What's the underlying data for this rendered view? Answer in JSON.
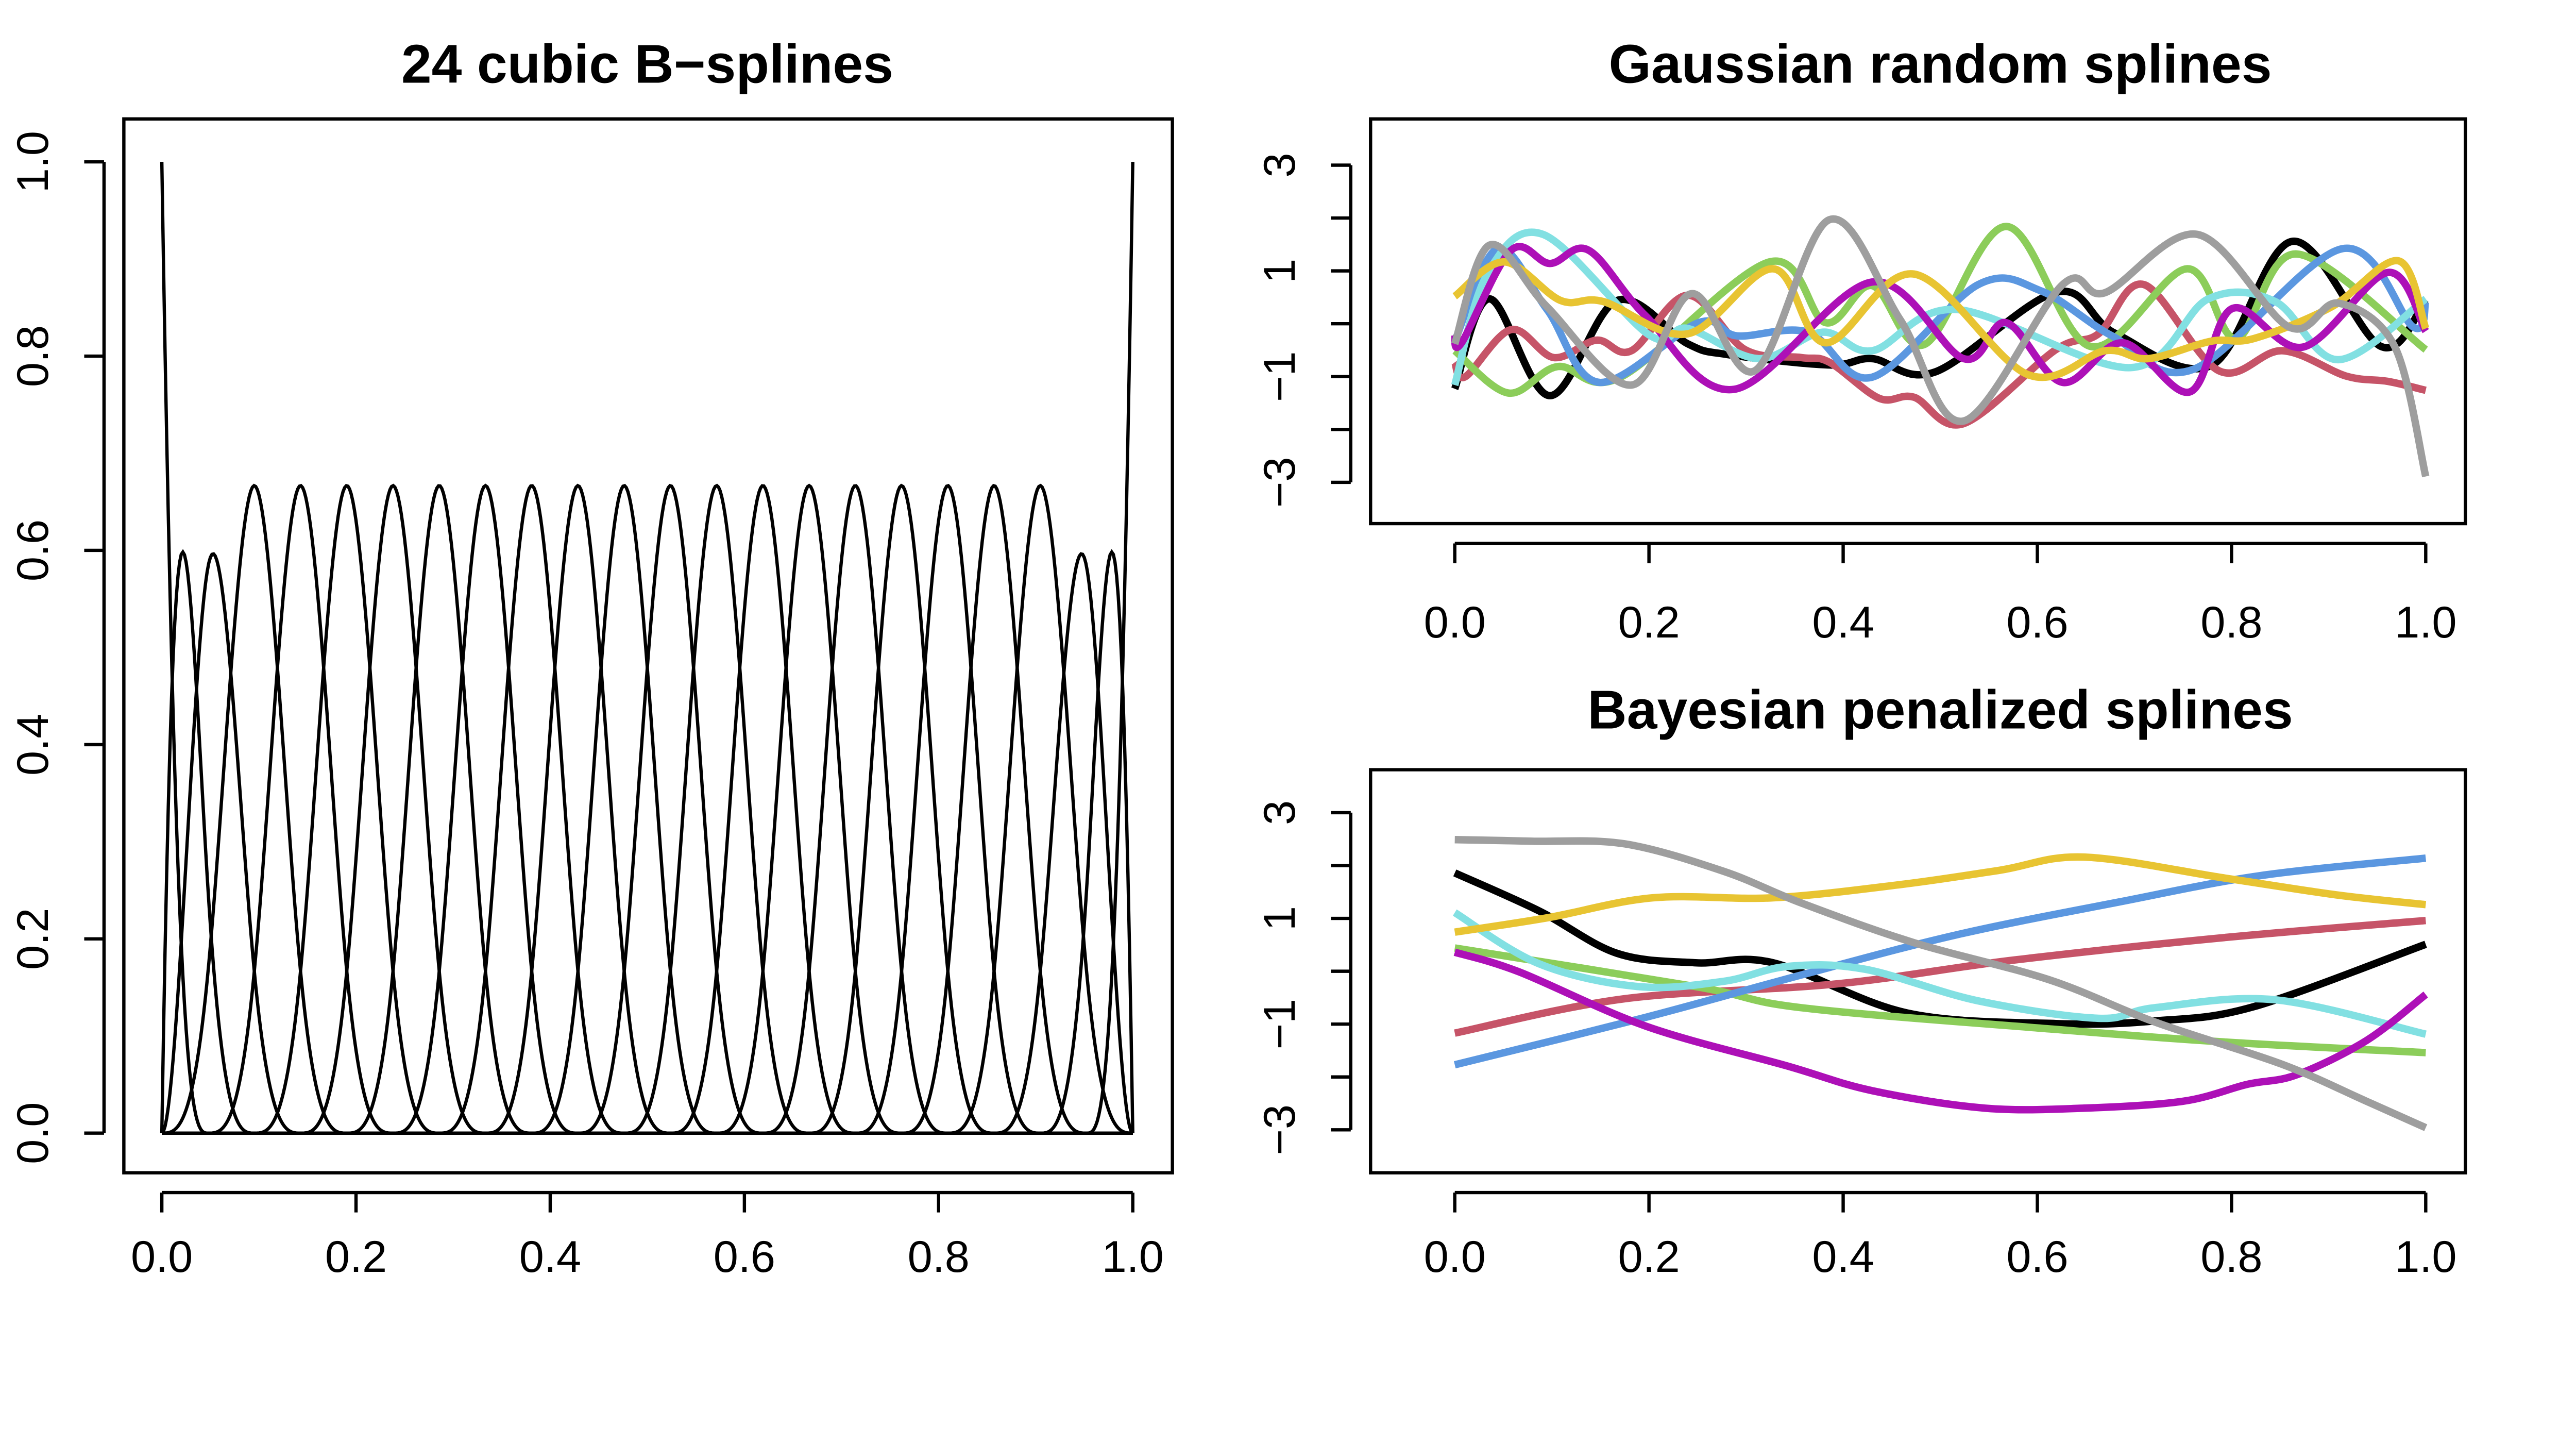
{
  "chart_data": [
    {
      "type": "line",
      "title": "24 cubic B−splines",
      "n_basis": 24,
      "degree": 3,
      "xlim": [
        0,
        1
      ],
      "ylim": [
        0,
        1
      ],
      "x_ticks": [
        "0.0",
        "0.2",
        "0.4",
        "0.6",
        "0.8",
        "1.0"
      ],
      "x_tick_values": [
        0,
        0.2,
        0.4,
        0.6,
        0.8,
        1.0
      ],
      "y_ticks": [
        "0.0",
        "0.2",
        "0.4",
        "0.6",
        "0.8",
        "1.0"
      ],
      "y_tick_values": [
        0,
        0.2,
        0.4,
        0.6,
        0.8,
        1.0
      ],
      "color": "#000000"
    },
    {
      "type": "line",
      "title": "Gaussian random splines",
      "xlim": [
        0,
        1
      ],
      "ylim": [
        -3,
        3
      ],
      "x_ticks": [
        "0.0",
        "0.2",
        "0.4",
        "0.6",
        "0.8",
        "1.0"
      ],
      "x_tick_values": [
        0,
        0.2,
        0.4,
        0.6,
        0.8,
        1.0
      ],
      "y_tick_values": [
        -3,
        -2,
        -1,
        0,
        1,
        2,
        3
      ],
      "y_ticks": [
        "−3",
        "",
        "−1",
        "",
        "1",
        "",
        "3"
      ],
      "series": [
        {
          "name": "black",
          "color": "#000000",
          "points": [
            [
              0,
              -1.23
            ],
            [
              0.036,
              0.47
            ],
            [
              0.098,
              -1.36
            ],
            [
              0.167,
              0.44
            ],
            [
              0.24,
              -0.38
            ],
            [
              0.28,
              -0.58
            ],
            [
              0.386,
              -0.78
            ],
            [
              0.43,
              -0.66
            ],
            [
              0.495,
              -0.91
            ],
            [
              0.62,
              0.6
            ],
            [
              0.68,
              -0.18
            ],
            [
              0.78,
              -0.78
            ],
            [
              0.863,
              1.56
            ],
            [
              0.954,
              -0.43
            ],
            [
              1,
              0.46
            ]
          ]
        },
        {
          "name": "red",
          "color": "#C65468",
          "points": [
            [
              0,
              -0.73
            ],
            [
              0.011,
              -1.0
            ],
            [
              0.058,
              -0.11
            ],
            [
              0.102,
              -0.64
            ],
            [
              0.146,
              -0.31
            ],
            [
              0.182,
              -0.51
            ],
            [
              0.24,
              0.54
            ],
            [
              0.299,
              -0.49
            ],
            [
              0.357,
              -0.64
            ],
            [
              0.386,
              -0.73
            ],
            [
              0.437,
              -1.41
            ],
            [
              0.473,
              -1.39
            ],
            [
              0.524,
              -1.89
            ],
            [
              0.619,
              -0.49
            ],
            [
              0.663,
              -0.19
            ],
            [
              0.71,
              0.74
            ],
            [
              0.787,
              -0.89
            ],
            [
              0.852,
              -0.51
            ],
            [
              0.918,
              -0.99
            ],
            [
              0.961,
              -1.09
            ],
            [
              1,
              -1.26
            ]
          ]
        },
        {
          "name": "green",
          "color": "#8CCD5A",
          "points": [
            [
              0,
              -0.51
            ],
            [
              0.055,
              -1.31
            ],
            [
              0.106,
              -0.81
            ],
            [
              0.171,
              -1.01
            ],
            [
              0.324,
              1.17
            ],
            [
              0.382,
              0.02
            ],
            [
              0.43,
              0.72
            ],
            [
              0.484,
              -0.39
            ],
            [
              0.568,
              1.84
            ],
            [
              0.655,
              -0.43
            ],
            [
              0.754,
              1.04
            ],
            [
              0.805,
              -0.28
            ],
            [
              0.867,
              1.32
            ],
            [
              1,
              -0.49
            ]
          ]
        },
        {
          "name": "blue",
          "color": "#5B97E0",
          "points": [
            [
              0,
              -0.33
            ],
            [
              0.044,
              1.42
            ],
            [
              0.095,
              0.27
            ],
            [
              0.149,
              -1.11
            ],
            [
              0.251,
              0.02
            ],
            [
              0.291,
              -0.23
            ],
            [
              0.364,
              -0.16
            ],
            [
              0.43,
              -1.01
            ],
            [
              0.539,
              0.74
            ],
            [
              0.604,
              0.62
            ],
            [
              0.677,
              -0.23
            ],
            [
              0.761,
              -0.86
            ],
            [
              0.914,
              1.42
            ],
            [
              0.987,
              -0.06
            ],
            [
              1,
              0.42
            ]
          ]
        },
        {
          "name": "cyan",
          "color": "#82E0E2",
          "points": [
            [
              0,
              -1.16
            ],
            [
              0.033,
              0.92
            ],
            [
              0.091,
              1.69
            ],
            [
              0.2,
              -0.21
            ],
            [
              0.24,
              -0.09
            ],
            [
              0.313,
              -0.66
            ],
            [
              0.379,
              -0.16
            ],
            [
              0.43,
              -0.51
            ],
            [
              0.517,
              0.27
            ],
            [
              0.696,
              -0.83
            ],
            [
              0.776,
              0.47
            ],
            [
              0.845,
              0.42
            ],
            [
              0.91,
              -0.68
            ],
            [
              1,
              0.47
            ]
          ]
        },
        {
          "name": "magenta",
          "color": "#AD10B7",
          "points": [
            [
              0,
              -0.19
            ],
            [
              0.007,
              -0.36
            ],
            [
              0.058,
              1.39
            ],
            [
              0.098,
              1.14
            ],
            [
              0.138,
              1.39
            ],
            [
              0.197,
              0.14
            ],
            [
              0.288,
              -1.24
            ],
            [
              0.43,
              0.79
            ],
            [
              0.524,
              -0.66
            ],
            [
              0.568,
              0.02
            ],
            [
              0.626,
              -1.11
            ],
            [
              0.688,
              -0.36
            ],
            [
              0.757,
              -1.29
            ],
            [
              0.801,
              0.29
            ],
            [
              0.874,
              -0.44
            ],
            [
              0.961,
              0.97
            ],
            [
              1,
              -0.14
            ]
          ]
        },
        {
          "name": "yellow",
          "color": "#E8C432",
          "points": [
            [
              0,
              0.52
            ],
            [
              0.051,
              1.17
            ],
            [
              0.109,
              0.44
            ],
            [
              0.153,
              0.42
            ],
            [
              0.24,
              -0.19
            ],
            [
              0.328,
              1.04
            ],
            [
              0.382,
              -0.36
            ],
            [
              0.473,
              0.94
            ],
            [
              0.59,
              -0.96
            ],
            [
              0.67,
              -0.51
            ],
            [
              0.714,
              -0.66
            ],
            [
              0.779,
              -0.33
            ],
            [
              0.823,
              -0.28
            ],
            [
              0.903,
              0.32
            ],
            [
              0.972,
              1.19
            ],
            [
              1,
              -0.09
            ]
          ]
        },
        {
          "name": "gray",
          "color": "#9E9E9E",
          "points": [
            [
              0,
              -0.38
            ],
            [
              0.036,
              1.49
            ],
            [
              0.095,
              0.32
            ],
            [
              0.182,
              -1.16
            ],
            [
              0.244,
              0.57
            ],
            [
              0.309,
              -0.89
            ],
            [
              0.386,
              1.97
            ],
            [
              0.459,
              0.07
            ],
            [
              0.524,
              -1.84
            ],
            [
              0.626,
              0.74
            ],
            [
              0.67,
              0.59
            ],
            [
              0.765,
              1.69
            ],
            [
              0.859,
              -0.06
            ],
            [
              0.91,
              0.39
            ],
            [
              0.968,
              -0.43
            ],
            [
              1,
              -2.89
            ]
          ]
        }
      ]
    },
    {
      "type": "line",
      "title": "Bayesian penalized splines",
      "xlim": [
        0,
        1
      ],
      "ylim": [
        -3,
        3
      ],
      "x_ticks": [
        "0.0",
        "0.2",
        "0.4",
        "0.6",
        "0.8",
        "1.0"
      ],
      "x_tick_values": [
        0,
        0.2,
        0.4,
        0.6,
        0.8,
        1.0
      ],
      "y_tick_values": [
        -3,
        -2,
        -1,
        0,
        1,
        2,
        3
      ],
      "y_ticks": [
        "−3",
        "",
        "−1",
        "",
        "1",
        "",
        "3"
      ],
      "series": [
        {
          "name": "black",
          "color": "#000000",
          "points": [
            [
              0,
              1.86
            ],
            [
              0.087,
              1.14
            ],
            [
              0.167,
              0.34
            ],
            [
              0.248,
              0.16
            ],
            [
              0.328,
              0.16
            ],
            [
              0.466,
              -0.79
            ],
            [
              0.619,
              -0.99
            ],
            [
              0.721,
              -0.94
            ],
            [
              0.823,
              -0.67
            ],
            [
              1,
              0.51
            ]
          ]
        },
        {
          "name": "red",
          "color": "#C65468",
          "points": [
            [
              0,
              -1.17
            ],
            [
              0.175,
              -0.52
            ],
            [
              0.393,
              -0.24
            ],
            [
              0.575,
              0.21
            ],
            [
              0.794,
              0.64
            ],
            [
              1,
              0.96
            ]
          ]
        },
        {
          "name": "green",
          "color": "#8CCD5A",
          "points": [
            [
              0,
              0.44
            ],
            [
              0.248,
              -0.29
            ],
            [
              0.357,
              -0.69
            ],
            [
              0.612,
              -1.09
            ],
            [
              0.794,
              -1.34
            ],
            [
              1,
              -1.54
            ]
          ]
        },
        {
          "name": "blue",
          "color": "#5B97E0",
          "points": [
            [
              0,
              -1.77
            ],
            [
              0.197,
              -0.87
            ],
            [
              0.357,
              -0.07
            ],
            [
              0.517,
              0.69
            ],
            [
              0.684,
              1.31
            ],
            [
              0.83,
              1.81
            ],
            [
              1,
              2.14
            ]
          ]
        },
        {
          "name": "cyan",
          "color": "#82E0E2",
          "points": [
            [
              0,
              1.11
            ],
            [
              0.087,
              0.14
            ],
            [
              0.189,
              -0.29
            ],
            [
              0.277,
              -0.19
            ],
            [
              0.342,
              0.09
            ],
            [
              0.422,
              0.04
            ],
            [
              0.539,
              -0.56
            ],
            [
              0.663,
              -0.89
            ],
            [
              0.721,
              -0.69
            ],
            [
              0.845,
              -0.54
            ],
            [
              1,
              -1.19
            ]
          ]
        },
        {
          "name": "magenta",
          "color": "#AD10B7",
          "points": [
            [
              0,
              0.36
            ],
            [
              0.066,
              -0.01
            ],
            [
              0.197,
              -1.04
            ],
            [
              0.342,
              -1.79
            ],
            [
              0.43,
              -2.26
            ],
            [
              0.546,
              -2.59
            ],
            [
              0.648,
              -2.59
            ],
            [
              0.75,
              -2.46
            ],
            [
              0.816,
              -2.14
            ],
            [
              0.867,
              -1.96
            ],
            [
              0.939,
              -1.31
            ],
            [
              1,
              -0.44
            ]
          ]
        },
        {
          "name": "yellow",
          "color": "#E8C432",
          "points": [
            [
              0,
              0.74
            ],
            [
              0.095,
              1.01
            ],
            [
              0.204,
              1.39
            ],
            [
              0.328,
              1.39
            ],
            [
              0.459,
              1.64
            ],
            [
              0.561,
              1.91
            ],
            [
              0.648,
              2.16
            ],
            [
              0.794,
              1.76
            ],
            [
              0.91,
              1.44
            ],
            [
              1,
              1.26
            ]
          ]
        },
        {
          "name": "gray",
          "color": "#9E9E9E",
          "points": [
            [
              0,
              2.49
            ],
            [
              0.08,
              2.46
            ],
            [
              0.175,
              2.41
            ],
            [
              0.277,
              1.89
            ],
            [
              0.357,
              1.29
            ],
            [
              0.473,
              0.54
            ],
            [
              0.612,
              -0.16
            ],
            [
              0.721,
              -0.96
            ],
            [
              0.852,
              -1.76
            ],
            [
              0.939,
              -2.46
            ],
            [
              1,
              -2.96
            ]
          ]
        }
      ]
    }
  ]
}
